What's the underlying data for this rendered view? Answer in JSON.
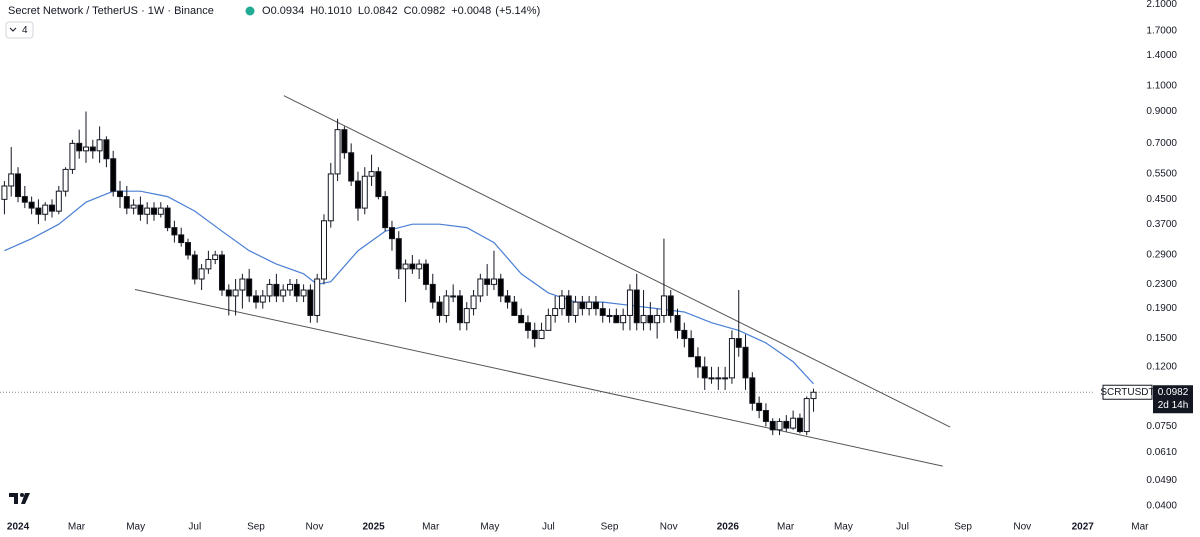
{
  "chart_data": {
    "type": "candlestick",
    "title": "Secret Network / TetherUS · 1W · Binance",
    "legend": [
      {
        "key": "O",
        "value": 0.0934
      },
      {
        "key": "H",
        "value": {
          "value": 0.101,
          "label": "0.1010"
        }
      },
      {
        "key": "L",
        "value": 0.0842
      },
      {
        "key": "C",
        "value": 0.0982
      }
    ],
    "change": {
      "value": 0.0048,
      "label": "+0.0048"
    },
    "change_pct": {
      "value": 5.14,
      "label": "(+5.14%)"
    },
    "indicator_count": 4,
    "symbol": "SCRTUSDT",
    "last_price": 0.0982,
    "countdown": "2d 14h",
    "log_scale": true,
    "up_color": "#ffffff",
    "down_color": "#000000",
    "xlim": [
      -2.65,
      158.4
    ],
    "ylim": [
      0.0364,
      2.17
    ],
    "xticks": [
      {
        "value": 0,
        "label": "2024"
      },
      {
        "value": 8.6,
        "label": "Mar"
      },
      {
        "value": 17.3,
        "label": "May"
      },
      {
        "value": 26,
        "label": "Jul"
      },
      {
        "value": 35,
        "label": "Sep"
      },
      {
        "value": 43.6,
        "label": "Nov"
      },
      {
        "value": 52.3,
        "label": "2025"
      },
      {
        "value": 60.7,
        "label": "Mar"
      },
      {
        "value": 69.4,
        "label": "May"
      },
      {
        "value": 78,
        "label": "Jul"
      },
      {
        "value": 87,
        "label": "Sep"
      },
      {
        "value": 95.7,
        "label": "Nov"
      },
      {
        "value": 104.4,
        "label": "2026"
      },
      {
        "value": 112.9,
        "label": "Mar"
      },
      {
        "value": 121.4,
        "label": "May"
      },
      {
        "value": 130.1,
        "label": "Jul"
      },
      {
        "value": 139,
        "label": "Sep"
      },
      {
        "value": 147.7,
        "label": "Nov"
      },
      {
        "value": 156.6,
        "label": "2027"
      },
      {
        "value": 165,
        "label": "Mar"
      }
    ],
    "yticks": [
      {
        "value": 0.04,
        "label": "0.0400"
      },
      {
        "value": 0.049,
        "label": "0.0490"
      },
      {
        "value": 0.061,
        "label": "0.0610"
      },
      {
        "value": 0.075,
        "label": "0.0750"
      },
      {
        "value": 0.12,
        "label": "0.1200"
      },
      {
        "value": 0.15,
        "label": "0.1500"
      },
      {
        "value": 0.19,
        "label": "0.1900"
      },
      {
        "value": 0.23,
        "label": "0.2300"
      },
      {
        "value": 0.29,
        "label": "0.2900"
      },
      {
        "value": 0.37,
        "label": "0.3700"
      },
      {
        "value": 0.45,
        "label": "0.4500"
      },
      {
        "value": 0.55,
        "label": "0.5500"
      },
      {
        "value": 0.7,
        "label": "0.7000"
      },
      {
        "value": 0.9,
        "label": "0.9000"
      },
      {
        "value": 1.1,
        "label": "1.1000"
      },
      {
        "value": 1.4,
        "label": "1.4000"
      },
      {
        "value": 1.7,
        "label": "1.7000"
      },
      {
        "value": 2.1,
        "label": "2.1000"
      }
    ],
    "x": [
      -2,
      -1,
      0,
      1,
      2,
      3,
      4,
      5,
      6,
      7,
      8,
      9,
      10,
      11,
      12,
      13,
      14,
      15,
      16,
      17,
      18,
      19,
      20,
      21,
      22,
      23,
      24,
      25,
      26,
      27,
      28,
      29,
      30,
      31,
      32,
      33,
      34,
      35,
      36,
      37,
      38,
      39,
      40,
      41,
      42,
      43,
      44,
      45,
      46,
      47,
      48,
      49,
      50,
      51,
      52,
      53,
      54,
      55,
      56,
      57,
      58,
      59,
      60,
      61,
      62,
      63,
      64,
      65,
      66,
      67,
      68,
      69,
      70,
      71,
      72,
      73,
      74,
      75,
      76,
      77,
      78,
      79,
      80,
      81,
      82,
      83,
      84,
      85,
      86,
      87,
      88,
      89,
      90,
      91,
      92,
      93,
      94,
      95,
      96,
      97,
      98,
      99,
      100,
      101,
      102,
      103,
      104,
      105,
      106,
      107,
      108,
      109,
      110,
      111,
      112,
      113,
      114,
      115,
      116,
      117
    ],
    "open": [
      0.45,
      0.5,
      0.55,
      0.46,
      0.44,
      0.42,
      0.4,
      0.43,
      0.41,
      0.48,
      0.57,
      0.7,
      0.66,
      0.68,
      0.66,
      0.72,
      0.62,
      0.48,
      0.46,
      0.42,
      0.43,
      0.4,
      0.42,
      0.4,
      0.42,
      0.36,
      0.34,
      0.32,
      0.29,
      0.24,
      0.26,
      0.28,
      0.29,
      0.22,
      0.21,
      0.22,
      0.24,
      0.21,
      0.2,
      0.21,
      0.23,
      0.21,
      0.22,
      0.23,
      0.21,
      0.22,
      0.18,
      0.24,
      0.38,
      0.55,
      0.78,
      0.65,
      0.52,
      0.42,
      0.54,
      0.56,
      0.46,
      0.36,
      0.33,
      0.26,
      0.27,
      0.26,
      0.27,
      0.23,
      0.2,
      0.18,
      0.21,
      0.21,
      0.17,
      0.19,
      0.21,
      0.24,
      0.23,
      0.24,
      0.21,
      0.2,
      0.18,
      0.17,
      0.16,
      0.15,
      0.16,
      0.18,
      0.19,
      0.21,
      0.18,
      0.2,
      0.19,
      0.2,
      0.19,
      0.18,
      0.18,
      0.17,
      0.18,
      0.22,
      0.17,
      0.18,
      0.17,
      0.18,
      0.21,
      0.18,
      0.16,
      0.15,
      0.13,
      0.12,
      0.11,
      0.11,
      0.11,
      0.11,
      0.15,
      0.14,
      0.11,
      0.09,
      0.085,
      0.078,
      0.073,
      0.078,
      0.074,
      0.08,
      0.072,
      0.0934
    ],
    "high": [
      0.52,
      0.68,
      0.58,
      0.5,
      0.46,
      0.45,
      0.44,
      0.45,
      0.5,
      0.58,
      0.72,
      0.78,
      0.9,
      0.72,
      0.8,
      0.74,
      0.66,
      0.52,
      0.5,
      0.45,
      0.46,
      0.44,
      0.44,
      0.44,
      0.43,
      0.38,
      0.36,
      0.33,
      0.3,
      0.27,
      0.3,
      0.3,
      0.3,
      0.23,
      0.24,
      0.25,
      0.26,
      0.22,
      0.22,
      0.24,
      0.25,
      0.23,
      0.24,
      0.24,
      0.23,
      0.23,
      0.25,
      0.4,
      0.6,
      0.85,
      0.8,
      0.7,
      0.56,
      0.58,
      0.64,
      0.58,
      0.48,
      0.38,
      0.35,
      0.28,
      0.29,
      0.28,
      0.28,
      0.25,
      0.21,
      0.22,
      0.23,
      0.22,
      0.2,
      0.22,
      0.25,
      0.27,
      0.3,
      0.25,
      0.22,
      0.21,
      0.19,
      0.18,
      0.17,
      0.17,
      0.19,
      0.21,
      0.22,
      0.22,
      0.21,
      0.21,
      0.21,
      0.21,
      0.2,
      0.19,
      0.19,
      0.19,
      0.23,
      0.25,
      0.22,
      0.2,
      0.19,
      0.33,
      0.22,
      0.19,
      0.17,
      0.16,
      0.14,
      0.13,
      0.12,
      0.12,
      0.12,
      0.16,
      0.22,
      0.155,
      0.115,
      0.095,
      0.09,
      0.08,
      0.08,
      0.082,
      0.085,
      0.083,
      0.095,
      0.101
    ],
    "low": [
      0.4,
      0.46,
      0.44,
      0.42,
      0.4,
      0.37,
      0.38,
      0.39,
      0.4,
      0.46,
      0.55,
      0.62,
      0.6,
      0.62,
      0.6,
      0.58,
      0.46,
      0.42,
      0.4,
      0.4,
      0.38,
      0.37,
      0.38,
      0.39,
      0.35,
      0.32,
      0.31,
      0.28,
      0.23,
      0.22,
      0.25,
      0.27,
      0.21,
      0.18,
      0.18,
      0.19,
      0.2,
      0.19,
      0.19,
      0.2,
      0.2,
      0.2,
      0.21,
      0.2,
      0.2,
      0.17,
      0.17,
      0.23,
      0.36,
      0.52,
      0.62,
      0.5,
      0.38,
      0.4,
      0.5,
      0.45,
      0.35,
      0.3,
      0.24,
      0.2,
      0.25,
      0.24,
      0.22,
      0.19,
      0.17,
      0.17,
      0.2,
      0.16,
      0.16,
      0.18,
      0.2,
      0.21,
      0.22,
      0.2,
      0.19,
      0.18,
      0.17,
      0.15,
      0.14,
      0.15,
      0.16,
      0.17,
      0.18,
      0.17,
      0.17,
      0.18,
      0.18,
      0.18,
      0.17,
      0.17,
      0.17,
      0.16,
      0.16,
      0.16,
      0.16,
      0.16,
      0.15,
      0.17,
      0.17,
      0.15,
      0.14,
      0.13,
      0.11,
      0.1,
      0.105,
      0.1,
      0.1,
      0.105,
      0.13,
      0.1,
      0.085,
      0.08,
      0.075,
      0.07,
      0.07,
      0.072,
      0.073,
      0.071,
      0.07,
      0.0842
    ],
    "close": [
      0.5,
      0.55,
      0.46,
      0.44,
      0.42,
      0.4,
      0.43,
      0.41,
      0.48,
      0.57,
      0.7,
      0.66,
      0.68,
      0.66,
      0.72,
      0.62,
      0.48,
      0.46,
      0.42,
      0.43,
      0.4,
      0.42,
      0.4,
      0.42,
      0.36,
      0.34,
      0.32,
      0.29,
      0.24,
      0.26,
      0.28,
      0.29,
      0.22,
      0.21,
      0.22,
      0.24,
      0.21,
      0.2,
      0.21,
      0.23,
      0.21,
      0.22,
      0.23,
      0.21,
      0.22,
      0.18,
      0.24,
      0.38,
      0.55,
      0.78,
      0.65,
      0.52,
      0.42,
      0.54,
      0.56,
      0.46,
      0.36,
      0.33,
      0.26,
      0.27,
      0.26,
      0.27,
      0.23,
      0.2,
      0.18,
      0.21,
      0.21,
      0.17,
      0.19,
      0.21,
      0.24,
      0.23,
      0.24,
      0.21,
      0.2,
      0.18,
      0.17,
      0.16,
      0.15,
      0.16,
      0.18,
      0.19,
      0.21,
      0.18,
      0.2,
      0.19,
      0.2,
      0.19,
      0.18,
      0.18,
      0.17,
      0.18,
      0.22,
      0.17,
      0.18,
      0.17,
      0.18,
      0.21,
      0.18,
      0.16,
      0.15,
      0.13,
      0.12,
      0.11,
      0.11,
      0.11,
      0.11,
      0.15,
      0.14,
      0.11,
      0.09,
      0.085,
      0.078,
      0.073,
      0.078,
      0.074,
      0.08,
      0.072,
      0.0934,
      0.0982
    ],
    "ma": {
      "color": "#4a7fd4",
      "x": [
        -2,
        2,
        6,
        10,
        14,
        18,
        22,
        26,
        30,
        34,
        38,
        42,
        44,
        46,
        50,
        54,
        58,
        62,
        66,
        70,
        74,
        78,
        82,
        86,
        90,
        94,
        98,
        102,
        106,
        110,
        114,
        117
      ],
      "values": [
        0.3,
        0.33,
        0.37,
        0.44,
        0.48,
        0.48,
        0.46,
        0.41,
        0.35,
        0.3,
        0.27,
        0.25,
        0.23,
        0.235,
        0.3,
        0.35,
        0.37,
        0.37,
        0.36,
        0.32,
        0.25,
        0.215,
        0.2,
        0.2,
        0.195,
        0.19,
        0.185,
        0.17,
        0.16,
        0.145,
        0.125,
        0.105
      ]
    },
    "trendlines": [
      {
        "color": "#555555",
        "x": [
          39.1,
          137.1
        ],
        "values": [
          1.02,
          0.0746
        ]
      },
      {
        "color": "#555555",
        "x": [
          17.2,
          136
        ],
        "values": [
          0.221,
          0.0548
        ]
      }
    ]
  }
}
